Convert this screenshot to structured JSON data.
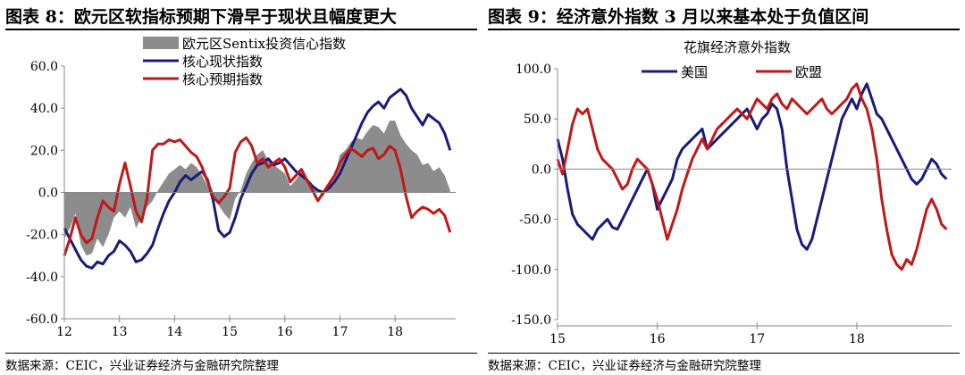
{
  "left": {
    "figure_title": "图表 8：欧元区软指标预期下滑早于现状且幅度更大",
    "source": "数据来源：CEIC，兴业证券经济与金融研究院整理"
  },
  "right": {
    "figure_title": "图表 9：经济意外指数 3 月以来基本处于负值区间",
    "source": "数据来源：CEIC，兴业证券经济与金融研究院整理"
  },
  "chart_data": [
    {
      "type": "line",
      "title": "",
      "ylim": [
        -60,
        60
      ],
      "yticks": [
        60,
        40,
        20,
        0,
        -20,
        -40,
        -60
      ],
      "ytick_labels": [
        "60.0",
        "40.0",
        "20.0",
        "0.0",
        "-20.0",
        "-40.0",
        "-60.0"
      ],
      "xlim": [
        2012,
        2019.1
      ],
      "xticks": [
        2012,
        2013,
        2014,
        2015,
        2016,
        2017,
        2018
      ],
      "xtick_labels": [
        "12",
        "13",
        "14",
        "15",
        "16",
        "17",
        "18"
      ],
      "grid": false,
      "legend_position": "top-center",
      "series": [
        {
          "name": "欧元区Sentix投资信心指数",
          "style": "area",
          "color": "#8c8c8c",
          "x": [
            2012.0,
            2012.1,
            2012.2,
            2012.3,
            2012.4,
            2012.5,
            2012.6,
            2012.7,
            2012.8,
            2012.9,
            2013.0,
            2013.1,
            2013.2,
            2013.3,
            2013.4,
            2013.5,
            2013.6,
            2013.7,
            2013.8,
            2013.9,
            2014.0,
            2014.1,
            2014.2,
            2014.3,
            2014.4,
            2014.5,
            2014.6,
            2014.7,
            2014.8,
            2014.9,
            2015.0,
            2015.1,
            2015.2,
            2015.3,
            2015.4,
            2015.5,
            2015.6,
            2015.7,
            2015.8,
            2015.9,
            2016.0,
            2016.1,
            2016.2,
            2016.3,
            2016.4,
            2016.5,
            2016.6,
            2016.7,
            2016.8,
            2016.9,
            2017.0,
            2017.1,
            2017.2,
            2017.3,
            2017.4,
            2017.5,
            2017.6,
            2017.7,
            2017.8,
            2017.9,
            2018.0,
            2018.1,
            2018.2,
            2018.3,
            2018.4,
            2018.5,
            2018.6,
            2018.7,
            2018.8,
            2018.9,
            2019.0
          ],
          "values": [
            -22,
            -17,
            -10,
            -25,
            -30,
            -29,
            -22,
            -26,
            -20,
            -12,
            -9,
            -12,
            -7,
            -17,
            -12,
            -7,
            -4,
            1,
            5,
            9,
            11,
            13,
            11,
            14,
            12,
            8,
            3,
            -3,
            -6,
            -10,
            -13,
            -3,
            1,
            9,
            14,
            18,
            20,
            15,
            13,
            11,
            9,
            3,
            6,
            10,
            5,
            2,
            1,
            -2,
            4,
            8,
            18,
            20,
            24,
            26,
            25,
            29,
            32,
            31,
            28,
            34,
            34,
            27,
            23,
            20,
            18,
            13,
            14,
            10,
            12,
            8,
            1
          ]
        },
        {
          "name": "核心现状指数",
          "style": "line",
          "color": "#1a1a78",
          "x": [
            2012.0,
            2012.1,
            2012.2,
            2012.3,
            2012.4,
            2012.5,
            2012.6,
            2012.7,
            2012.8,
            2012.9,
            2013.0,
            2013.1,
            2013.2,
            2013.3,
            2013.4,
            2013.5,
            2013.6,
            2013.7,
            2013.8,
            2013.9,
            2014.0,
            2014.1,
            2014.2,
            2014.3,
            2014.4,
            2014.5,
            2014.6,
            2014.7,
            2014.8,
            2014.9,
            2015.0,
            2015.1,
            2015.2,
            2015.3,
            2015.4,
            2015.5,
            2015.6,
            2015.7,
            2015.8,
            2015.9,
            2016.0,
            2016.1,
            2016.2,
            2016.3,
            2016.4,
            2016.5,
            2016.6,
            2016.7,
            2016.8,
            2016.9,
            2017.0,
            2017.1,
            2017.2,
            2017.3,
            2017.4,
            2017.5,
            2017.6,
            2017.7,
            2017.8,
            2017.9,
            2018.0,
            2018.1,
            2018.2,
            2018.3,
            2018.4,
            2018.5,
            2018.6,
            2018.7,
            2018.8,
            2018.9,
            2019.0
          ],
          "values": [
            -17,
            -22,
            -27,
            -32,
            -35,
            -36,
            -33,
            -34,
            -30,
            -28,
            -23,
            -25,
            -28,
            -33,
            -32,
            -29,
            -25,
            -17,
            -10,
            -4,
            0,
            5,
            8,
            6,
            8,
            10,
            6,
            -4,
            -18,
            -21,
            -19,
            -12,
            -3,
            3,
            9,
            13,
            14,
            16,
            13,
            14,
            16,
            13,
            10,
            8,
            6,
            3,
            1,
            0,
            2,
            5,
            9,
            15,
            21,
            27,
            33,
            38,
            41,
            43,
            40,
            45,
            47,
            49,
            46,
            40,
            36,
            32,
            37,
            35,
            33,
            28,
            20
          ]
        },
        {
          "name": "核心预期指数",
          "style": "line",
          "color": "#c01818",
          "x": [
            2012.0,
            2012.1,
            2012.2,
            2012.3,
            2012.4,
            2012.5,
            2012.6,
            2012.7,
            2012.8,
            2012.9,
            2013.0,
            2013.1,
            2013.2,
            2013.3,
            2013.4,
            2013.5,
            2013.6,
            2013.7,
            2013.8,
            2013.9,
            2014.0,
            2014.1,
            2014.2,
            2014.3,
            2014.4,
            2014.5,
            2014.6,
            2014.7,
            2014.8,
            2014.9,
            2015.0,
            2015.1,
            2015.2,
            2015.3,
            2015.4,
            2015.5,
            2015.6,
            2015.7,
            2015.8,
            2015.9,
            2016.0,
            2016.1,
            2016.2,
            2016.3,
            2016.4,
            2016.5,
            2016.6,
            2016.7,
            2016.8,
            2016.9,
            2017.0,
            2017.1,
            2017.2,
            2017.3,
            2017.4,
            2017.5,
            2017.6,
            2017.7,
            2017.8,
            2017.9,
            2018.0,
            2018.1,
            2018.2,
            2018.3,
            2018.4,
            2018.5,
            2018.6,
            2018.7,
            2018.8,
            2018.9,
            2019.0
          ],
          "values": [
            -30,
            -22,
            -12,
            -20,
            -24,
            -22,
            -12,
            -4,
            -7,
            -9,
            4,
            14,
            3,
            -9,
            -14,
            -3,
            20,
            23,
            23,
            25,
            24,
            25,
            22,
            19,
            17,
            12,
            5,
            -2,
            -5,
            -2,
            2,
            19,
            24,
            26,
            22,
            14,
            16,
            12,
            14,
            16,
            12,
            5,
            8,
            11,
            6,
            1,
            -4,
            0,
            4,
            8,
            14,
            18,
            21,
            19,
            17,
            20,
            21,
            16,
            18,
            22,
            20,
            11,
            -2,
            -12,
            -9,
            -7,
            -8,
            -10,
            -8,
            -11,
            -19
          ]
        }
      ]
    },
    {
      "type": "line",
      "title": "花旗经济意外指数",
      "ylim": [
        -150,
        100
      ],
      "yticks": [
        100,
        50,
        0,
        -50,
        -100,
        -150
      ],
      "ytick_labels": [
        "100.0",
        "50.0",
        "0.0",
        "-50.0",
        "-100.0",
        "-150.0"
      ],
      "xlim": [
        2015,
        2018.95
      ],
      "xticks": [
        2015,
        2016,
        2017,
        2018
      ],
      "xtick_labels": [
        "15",
        "16",
        "17",
        "18"
      ],
      "grid": false,
      "legend_position": "top-left",
      "series": [
        {
          "name": "美国",
          "color": "#1a1a78",
          "x": [
            2015.0,
            2015.05,
            2015.1,
            2015.15,
            2015.2,
            2015.25,
            2015.3,
            2015.35,
            2015.4,
            2015.45,
            2015.5,
            2015.55,
            2015.6,
            2015.65,
            2015.7,
            2015.75,
            2015.8,
            2015.85,
            2015.9,
            2015.95,
            2016.0,
            2016.05,
            2016.1,
            2016.15,
            2016.2,
            2016.25,
            2016.3,
            2016.35,
            2016.4,
            2016.45,
            2016.5,
            2016.55,
            2016.6,
            2016.65,
            2016.7,
            2016.75,
            2016.8,
            2016.85,
            2016.9,
            2016.95,
            2017.0,
            2017.05,
            2017.1,
            2017.15,
            2017.2,
            2017.25,
            2017.3,
            2017.35,
            2017.4,
            2017.45,
            2017.5,
            2017.55,
            2017.6,
            2017.65,
            2017.7,
            2017.75,
            2017.8,
            2017.85,
            2017.9,
            2017.95,
            2018.0,
            2018.05,
            2018.1,
            2018.15,
            2018.2,
            2018.25,
            2018.3,
            2018.35,
            2018.4,
            2018.45,
            2018.5,
            2018.55,
            2018.6,
            2018.65,
            2018.7,
            2018.75,
            2018.8,
            2018.85,
            2018.9
          ],
          "values": [
            30,
            10,
            -20,
            -45,
            -55,
            -60,
            -65,
            -70,
            -60,
            -55,
            -50,
            -58,
            -60,
            -50,
            -40,
            -30,
            -20,
            -10,
            0,
            -15,
            -40,
            -30,
            -20,
            -10,
            10,
            20,
            25,
            30,
            35,
            40,
            20,
            25,
            30,
            35,
            40,
            45,
            50,
            55,
            60,
            50,
            40,
            50,
            55,
            65,
            60,
            40,
            0,
            -30,
            -60,
            -75,
            -80,
            -70,
            -50,
            -30,
            -10,
            10,
            30,
            50,
            60,
            70,
            60,
            75,
            85,
            70,
            55,
            50,
            40,
            30,
            20,
            10,
            0,
            -10,
            -15,
            -10,
            0,
            10,
            5,
            -5,
            -10
          ]
        },
        {
          "name": "欧盟",
          "color": "#c01818",
          "x": [
            2015.0,
            2015.05,
            2015.1,
            2015.15,
            2015.2,
            2015.25,
            2015.3,
            2015.35,
            2015.4,
            2015.45,
            2015.5,
            2015.55,
            2015.6,
            2015.65,
            2015.7,
            2015.75,
            2015.8,
            2015.85,
            2015.9,
            2015.95,
            2016.0,
            2016.05,
            2016.1,
            2016.15,
            2016.2,
            2016.25,
            2016.3,
            2016.35,
            2016.4,
            2016.45,
            2016.5,
            2016.55,
            2016.6,
            2016.65,
            2016.7,
            2016.75,
            2016.8,
            2016.85,
            2016.9,
            2016.95,
            2017.0,
            2017.05,
            2017.1,
            2017.15,
            2017.2,
            2017.25,
            2017.3,
            2017.35,
            2017.4,
            2017.45,
            2017.5,
            2017.55,
            2017.6,
            2017.65,
            2017.7,
            2017.75,
            2017.8,
            2017.85,
            2017.9,
            2017.95,
            2018.0,
            2018.05,
            2018.1,
            2018.15,
            2018.2,
            2018.25,
            2018.3,
            2018.35,
            2018.4,
            2018.45,
            2018.5,
            2018.55,
            2018.6,
            2018.65,
            2018.7,
            2018.75,
            2018.8,
            2018.85,
            2018.9
          ],
          "values": [
            10,
            -5,
            20,
            45,
            60,
            55,
            60,
            40,
            20,
            10,
            5,
            0,
            -10,
            -20,
            -15,
            0,
            10,
            5,
            0,
            -15,
            -30,
            -50,
            -70,
            -55,
            -40,
            -20,
            -5,
            10,
            20,
            30,
            20,
            30,
            40,
            45,
            50,
            55,
            60,
            55,
            50,
            60,
            70,
            65,
            60,
            70,
            75,
            65,
            60,
            70,
            65,
            60,
            55,
            60,
            65,
            70,
            60,
            55,
            60,
            65,
            70,
            80,
            85,
            70,
            60,
            40,
            10,
            -30,
            -60,
            -85,
            -95,
            -100,
            -90,
            -95,
            -80,
            -60,
            -40,
            -30,
            -40,
            -55,
            -60
          ]
        }
      ]
    }
  ]
}
